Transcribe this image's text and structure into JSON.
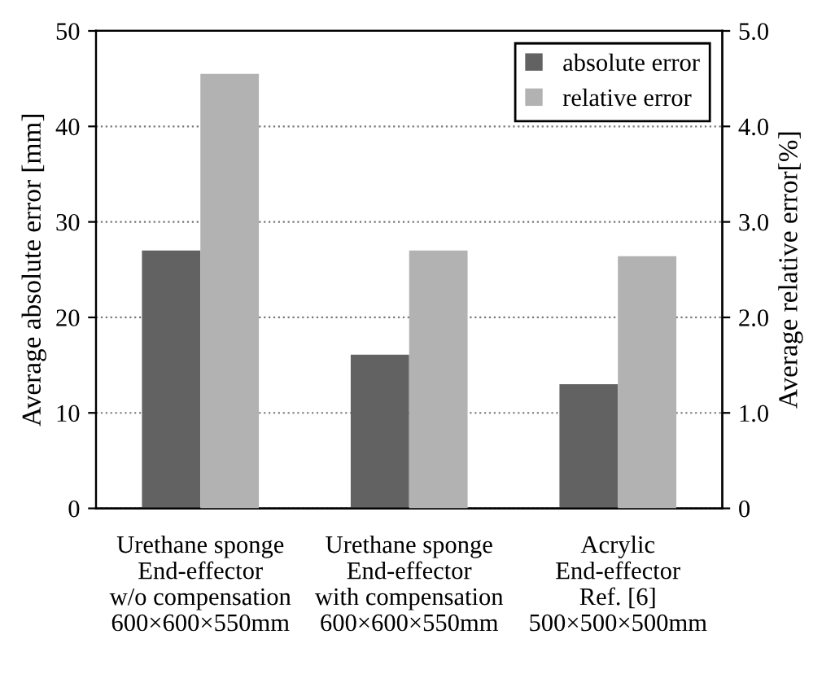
{
  "chart_data": {
    "type": "bar",
    "ylabel": "Average absolute error [mm]",
    "y2label": "Average relative error[%]",
    "categories": [
      "Urethane sponge\nEnd-effector\nw/o compensation\n600×600×550mm",
      "Urethane sponge\nEnd-effector\nwith compensation\n600×600×550mm",
      "Acrylic\nEnd-effector\nRef. [6]\n500×500×500mm"
    ],
    "series": [
      {
        "name": "absolute error",
        "color": "#626262",
        "values": [
          27.0,
          16.1,
          13.0
        ]
      },
      {
        "name": "relative error",
        "color": "#b2b2b2",
        "values": [
          4.55,
          2.7,
          2.64
        ],
        "axis": "y2"
      }
    ],
    "ylim": [
      0,
      50
    ],
    "yticks": [
      0,
      10,
      20,
      30,
      40,
      50
    ],
    "y2lim": [
      0,
      5.0
    ],
    "y2ticks": [
      {
        "value": 0,
        "label": "0"
      },
      {
        "value": 1,
        "label": "1.0"
      },
      {
        "value": 2,
        "label": "2.0"
      },
      {
        "value": 3,
        "label": "3.0"
      },
      {
        "value": 4,
        "label": "4.0"
      },
      {
        "value": 5,
        "label": "5.0"
      }
    ],
    "grid": "y",
    "legend": "top right"
  }
}
